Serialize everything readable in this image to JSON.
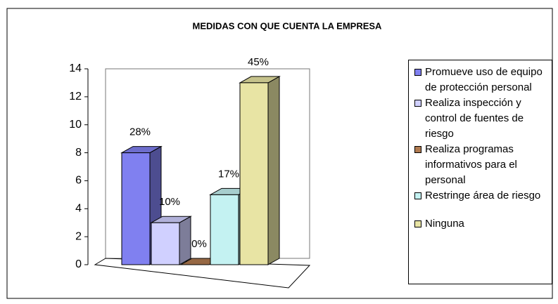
{
  "chart_data": {
    "type": "bar3d",
    "title": "MEDIDAS CON QUE CUENTA LA EMPRESA",
    "series": [
      {
        "name": "Promueve uso de equipo de protección personal",
        "color": "#8080f0",
        "values": [
          8
        ],
        "value_labels": [
          "28%"
        ]
      },
      {
        "name": "Realiza inspección y control de fuentes de riesgo",
        "color": "#d0d0ff",
        "values": [
          3
        ],
        "value_labels": [
          "10%"
        ]
      },
      {
        "name": "Realiza programas informativos para el personal",
        "color": "#b07a50",
        "values": [
          0
        ],
        "value_labels": [
          "0%"
        ]
      },
      {
        "name": "Restringe área de riesgo",
        "color": "#c4f2f2",
        "values": [
          5
        ],
        "value_labels": [
          "17%"
        ]
      },
      {
        "name": "Ninguna",
        "color": "#e8e4a4",
        "values": [
          13
        ],
        "value_labels": [
          "45%"
        ]
      }
    ],
    "ylim": [
      0,
      14
    ],
    "yticks": [
      0,
      2,
      4,
      6,
      8,
      10,
      12,
      14
    ]
  }
}
